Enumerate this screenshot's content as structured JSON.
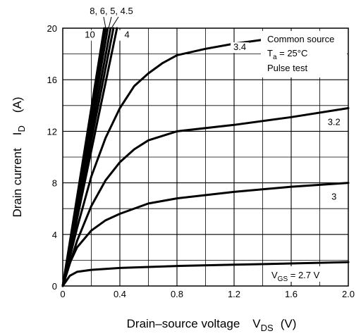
{
  "chart_data": {
    "type": "line",
    "xlabel": {
      "main": "Drain–source voltage",
      "symbol": "V",
      "subscript": "DS",
      "unit": "(V)"
    },
    "ylabel": {
      "main": "Drain current",
      "symbol": "I",
      "subscript": "D",
      "unit": "(A)"
    },
    "xlim": [
      0,
      2.0
    ],
    "ylim": [
      0,
      20
    ],
    "x_ticks": [
      "0",
      "0.4",
      "0.8",
      "1.2",
      "1.6",
      "2.0"
    ],
    "y_ticks": [
      "0",
      "4",
      "8",
      "12",
      "16",
      "20"
    ],
    "grid": true,
    "conditions": {
      "line1": "Common source",
      "line2_symbol": "T",
      "line2_subscript": "a",
      "line2_value": " = 25°C",
      "line3": "Pulse test"
    },
    "param_label": {
      "symbol": "V",
      "subscript": "GS",
      "value": " = 2.7 V"
    },
    "top_label": "8, 6, 5, 4.5",
    "series": [
      {
        "name": "2.7",
        "x": [
          0,
          0.05,
          0.1,
          0.2,
          0.4,
          0.8,
          1.2,
          1.6,
          2.0
        ],
        "y": [
          0,
          0.8,
          1.1,
          1.25,
          1.4,
          1.55,
          1.65,
          1.75,
          1.85
        ]
      },
      {
        "name": "3",
        "x": [
          0,
          0.05,
          0.1,
          0.2,
          0.3,
          0.4,
          0.6,
          0.8,
          1.2,
          1.6,
          2.0
        ],
        "y": [
          0,
          1.8,
          3.0,
          4.3,
          5.1,
          5.6,
          6.4,
          6.8,
          7.3,
          7.7,
          8.0
        ]
      },
      {
        "name": "3.2",
        "x": [
          0,
          0.1,
          0.2,
          0.3,
          0.4,
          0.5,
          0.6,
          0.8,
          1.2,
          1.6,
          2.0
        ],
        "y": [
          0,
          3.5,
          6.2,
          8.2,
          9.6,
          10.6,
          11.3,
          12.0,
          12.5,
          13.1,
          13.8
        ]
      },
      {
        "name": "3.4",
        "x": [
          0,
          0.1,
          0.2,
          0.3,
          0.4,
          0.5,
          0.6,
          0.7,
          0.8,
          1.0,
          1.2,
          1.4
        ],
        "y": [
          0,
          4.5,
          8.5,
          11.5,
          13.8,
          15.5,
          16.5,
          17.3,
          17.9,
          18.4,
          18.8,
          19.1
        ]
      },
      {
        "name": "4",
        "x": [
          0,
          0.1,
          0.2,
          0.3,
          0.38
        ],
        "y": [
          0,
          5.2,
          10.5,
          15.8,
          20
        ]
      },
      {
        "name": "4.5",
        "x": [
          0,
          0.1,
          0.2,
          0.3,
          0.355
        ],
        "y": [
          0,
          5.6,
          11.3,
          16.9,
          20
        ]
      },
      {
        "name": "5",
        "x": [
          0,
          0.1,
          0.2,
          0.3,
          0.335
        ],
        "y": [
          0,
          6.0,
          12.0,
          17.9,
          20
        ]
      },
      {
        "name": "6",
        "x": [
          0,
          0.1,
          0.2,
          0.3,
          0.315
        ],
        "y": [
          0,
          6.3,
          12.7,
          19.0,
          20
        ]
      },
      {
        "name": "8",
        "x": [
          0,
          0.1,
          0.2,
          0.3
        ],
        "y": [
          0,
          6.7,
          13.3,
          20
        ]
      },
      {
        "name": "10",
        "x": [
          0,
          0.1,
          0.2,
          0.29
        ],
        "y": [
          0,
          6.9,
          13.8,
          20
        ]
      }
    ],
    "curve_labels": [
      {
        "text": "10",
        "x": 0.19,
        "y": 19.25,
        "anchor": "middle"
      },
      {
        "text": "4",
        "x": 0.45,
        "y": 19.25,
        "anchor": "middle"
      },
      {
        "text": "3.4",
        "x": 1.24,
        "y": 18.3,
        "anchor": "middle"
      },
      {
        "text": "3.2",
        "x": 1.9,
        "y": 12.5,
        "anchor": "middle"
      },
      {
        "text": "3",
        "x": 1.9,
        "y": 6.7,
        "anchor": "middle"
      }
    ]
  }
}
